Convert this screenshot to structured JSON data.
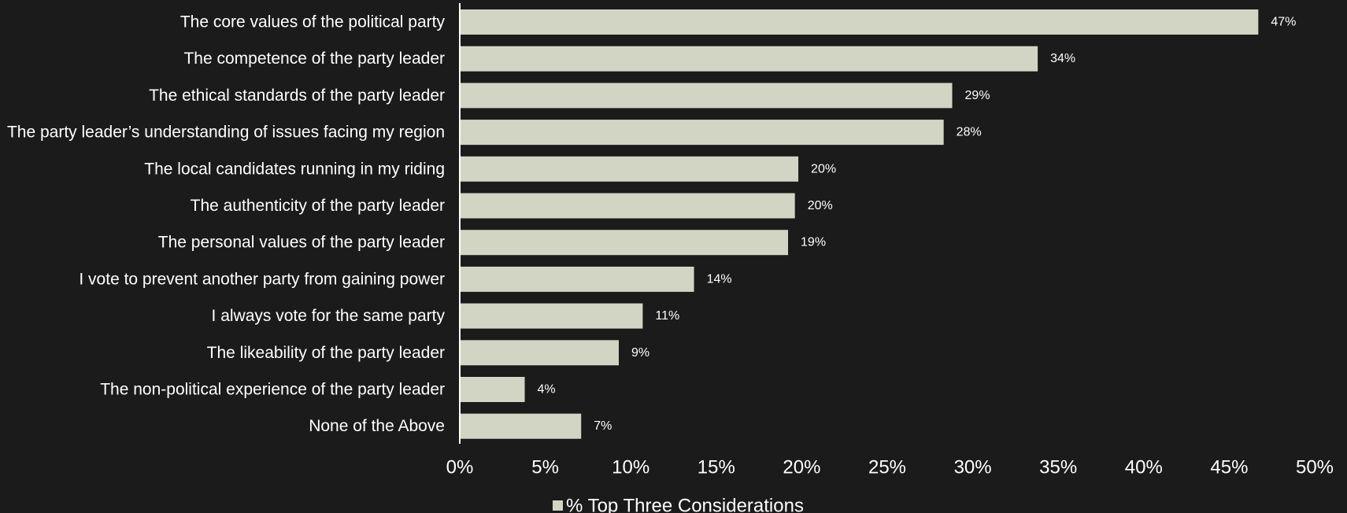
{
  "chart_data": {
    "type": "bar",
    "orientation": "horizontal",
    "categories": [
      "The core values of the political party",
      "The competence of the party leader",
      "The ethical standards of the party leader",
      "The party leader’s understanding of issues facing my region",
      "The local candidates running in my riding",
      "The authenticity of the party leader",
      "The personal values of the party leader",
      "I vote to prevent another party from gaining power",
      "I always vote for the same party",
      "The likeability of the party leader",
      "The non-political experience of the party leader",
      "None of the Above"
    ],
    "series": [
      {
        "name": "% Top Three Considerations",
        "values": [
          46.7,
          33.8,
          28.8,
          28.3,
          19.8,
          19.6,
          19.2,
          13.7,
          10.7,
          9.3,
          3.8,
          7.1
        ],
        "data_labels": [
          "47%",
          "34%",
          "29%",
          "28%",
          "20%",
          "20%",
          "19%",
          "14%",
          "11%",
          "9%",
          "4%",
          "7%"
        ]
      }
    ],
    "xlim": [
      0,
      50
    ],
    "x_ticks": [
      0,
      5,
      10,
      15,
      20,
      25,
      30,
      35,
      40,
      45,
      50
    ],
    "x_tick_labels": [
      "0%",
      "5%",
      "10%",
      "15%",
      "20%",
      "25%",
      "30%",
      "35%",
      "40%",
      "45%",
      "50%"
    ],
    "title": "",
    "xlabel": "",
    "ylabel": "",
    "grid": false,
    "legend_position": "bottom",
    "colors": {
      "background": "#1b1b1b",
      "bar": "#d2d5c3",
      "axis": "#ffffff",
      "text": "#ffffff"
    }
  }
}
